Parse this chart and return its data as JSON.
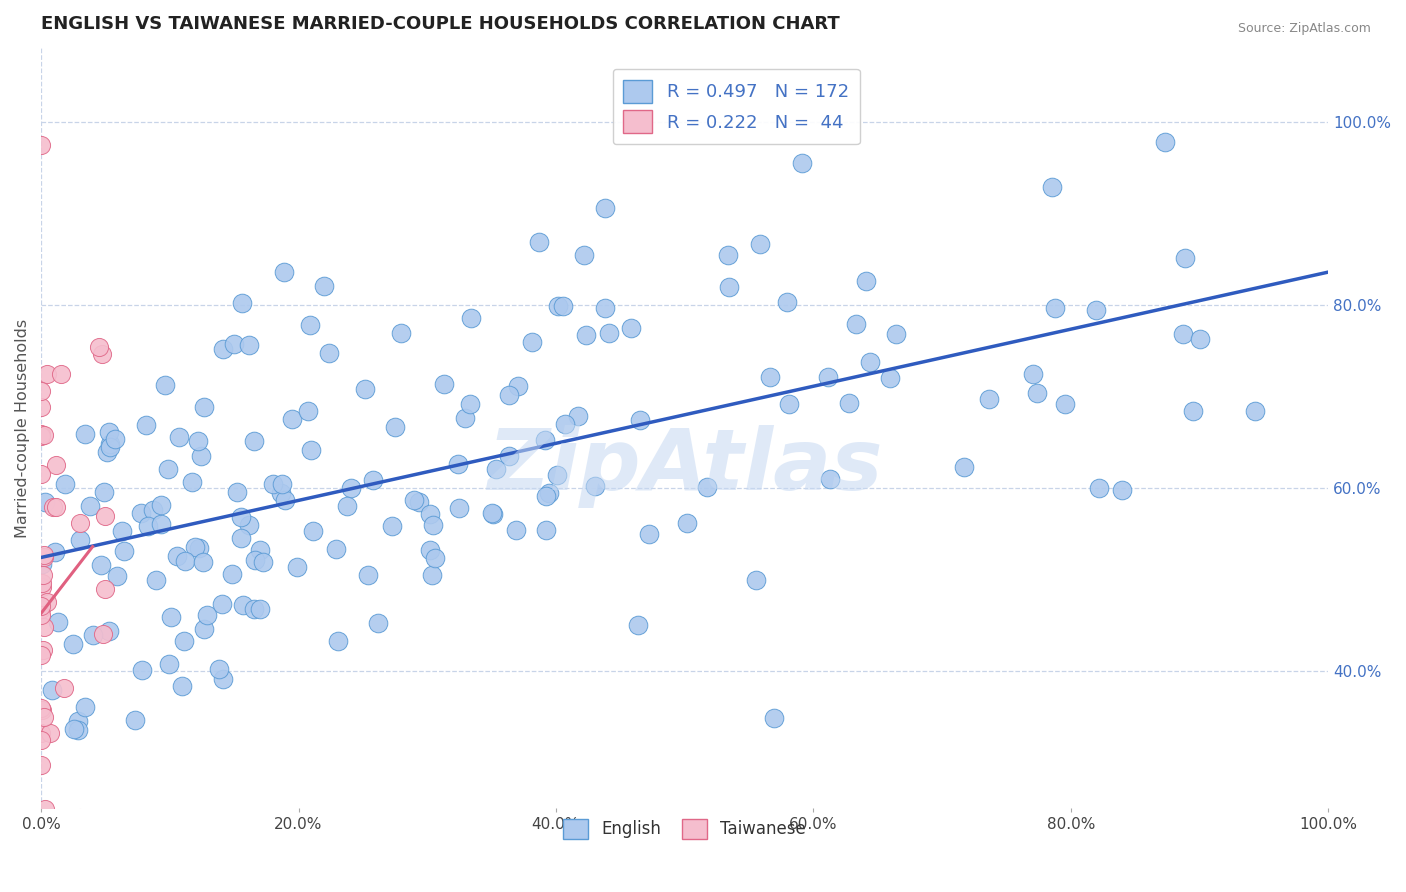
{
  "title": "ENGLISH VS TAIWANESE MARRIED-COUPLE HOUSEHOLDS CORRELATION CHART",
  "source": "Source: ZipAtlas.com",
  "ylabel": "Married-couple Households",
  "xlim": [
    0.0,
    1.0
  ],
  "ylim": [
    0.25,
    1.08
  ],
  "right_yticks": [
    0.4,
    0.6,
    0.8,
    1.0
  ],
  "right_yticklabels": [
    "40.0%",
    "60.0%",
    "80.0%",
    "100.0%"
  ],
  "bottom_xticks": [
    0.0,
    0.2,
    0.4,
    0.6,
    0.8,
    1.0
  ],
  "bottom_xticklabels": [
    "0.0%",
    "20.0%",
    "40.0%",
    "60.0%",
    "80.0%",
    "100.0%"
  ],
  "english_color": "#adc9ee",
  "english_edge_color": "#5b9bd5",
  "taiwanese_color": "#f5bece",
  "taiwanese_edge_color": "#e06888",
  "regression_english_color": "#2f5bbf",
  "regression_taiwanese_color": "#e06080",
  "watermark": "ZipAtlas",
  "watermark_color": "#c5d8f2",
  "english_R": 0.497,
  "english_N": 172,
  "taiwanese_R": 0.222,
  "taiwanese_N": 44,
  "legend_R_color": "#4472c4",
  "title_fontsize": 13,
  "background_color": "#ffffff",
  "grid_color": "#c8d4e8"
}
